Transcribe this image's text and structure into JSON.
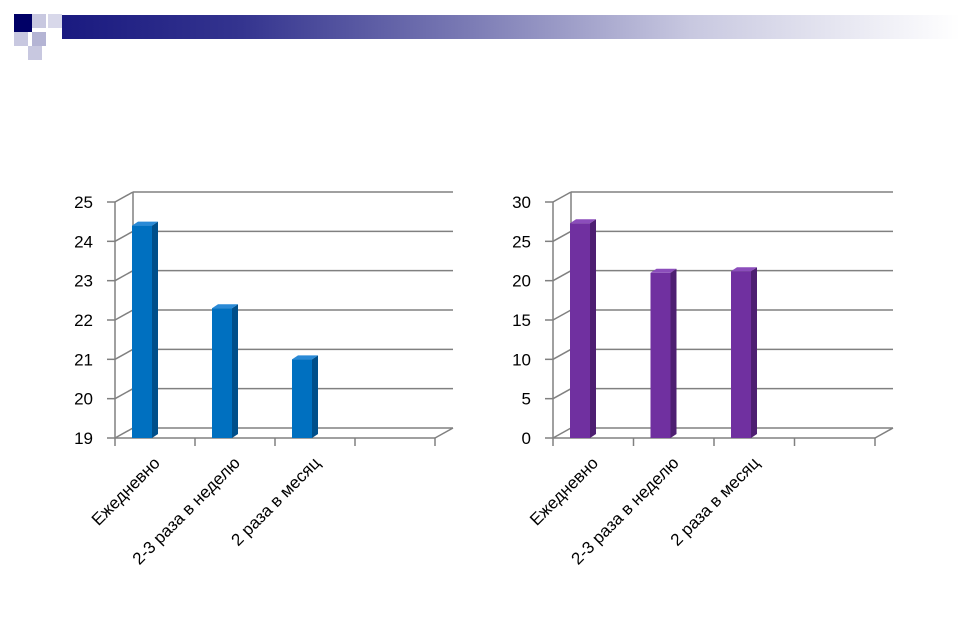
{
  "colors": {
    "header_dark": "#1a1a80",
    "header_mid": "#8c8cc0",
    "header_light": "#c8c8e0",
    "bar_left": "#0070c0",
    "bar_left_dark": "#004f8a",
    "bar_left_top": "#2a8ad6",
    "bar_right": "#7030a0",
    "bar_right_dark": "#4e1f72",
    "bar_right_top": "#8b4dbb",
    "grid": "#808080"
  },
  "chart_data": [
    {
      "type": "bar",
      "categories": [
        "Ежедневно",
        "2-3 раза в неделю",
        "2 раза в месяц",
        ""
      ],
      "values": [
        24.4,
        22.3,
        21.0,
        null
      ],
      "ylim": [
        19,
        25
      ],
      "yticks": [
        "19",
        "20",
        "21",
        "22",
        "23",
        "24",
        "25"
      ],
      "grid": true,
      "color": "#0070c0"
    },
    {
      "type": "bar",
      "categories": [
        "Ежедневно",
        "2-3 раза в неделю",
        "2 раза в месяц",
        ""
      ],
      "values": [
        27.3,
        21.0,
        21.2,
        null
      ],
      "ylim": [
        0,
        30
      ],
      "yticks": [
        "0",
        "5",
        "10",
        "15",
        "20",
        "25",
        "30"
      ],
      "grid": true,
      "color": "#7030a0"
    }
  ]
}
